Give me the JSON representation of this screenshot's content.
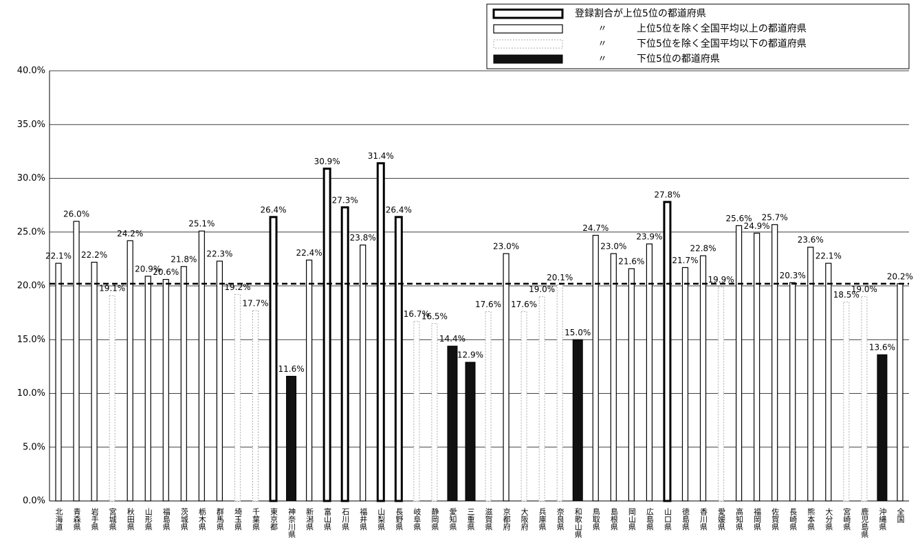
{
  "chart_data": {
    "type": "bar",
    "categories": [
      "北海道",
      "青森県",
      "岩手県",
      "宮城県",
      "秋田県",
      "山形県",
      "福島県",
      "茨城県",
      "栃木県",
      "群馬県",
      "埼玉県",
      "千葉県",
      "東京都",
      "神奈川県",
      "新潟県",
      "富山県",
      "石川県",
      "福井県",
      "山梨県",
      "長野県",
      "岐阜県",
      "静岡県",
      "愛知県",
      "三重県",
      "滋賀県",
      "京都府",
      "大阪府",
      "兵庫県",
      "奈良県",
      "和歌山県",
      "鳥取県",
      "島根県",
      "岡山県",
      "広島県",
      "山口県",
      "徳島県",
      "香川県",
      "愛媛県",
      "高知県",
      "福岡県",
      "佐賀県",
      "長崎県",
      "熊本県",
      "大分県",
      "宮崎県",
      "鹿児島県",
      "沖縄県",
      "全国"
    ],
    "values": [
      22.1,
      26.0,
      22.2,
      19.1,
      24.2,
      20.9,
      20.6,
      21.8,
      25.1,
      22.3,
      19.2,
      17.7,
      26.4,
      11.6,
      22.4,
      30.9,
      27.3,
      23.8,
      31.4,
      26.4,
      16.7,
      16.5,
      14.4,
      12.9,
      17.6,
      23.0,
      17.6,
      19.0,
      20.1,
      15.0,
      24.7,
      23.0,
      21.6,
      23.9,
      27.8,
      21.7,
      22.8,
      19.9,
      25.6,
      24.9,
      25.7,
      20.3,
      23.6,
      22.1,
      18.5,
      19.0,
      13.6,
      20.2
    ],
    "value_labels": [
      "22.1%",
      "26.0%",
      "22.2%",
      "19.1%",
      "24.2%",
      "20.9%",
      "20.6%",
      "21.8%",
      "25.1%",
      "22.3%",
      "19.2%",
      "17.7%",
      "26.4%",
      "11.6%",
      "22.4%",
      "30.9%",
      "27.3%",
      "23.8%",
      "31.4%",
      "26.4%",
      "16.7%",
      "16.5%",
      "14.4%",
      "12.9%",
      "17.6%",
      "23.0%",
      "17.6%",
      "19.0%",
      "20.1%",
      "15.0%",
      "24.7%",
      "23.0%",
      "21.6%",
      "23.9%",
      "27.8%",
      "21.7%",
      "22.8%",
      "19.9%",
      "25.6%",
      "24.9%",
      "25.7%",
      "20.3%",
      "23.6%",
      "22.1%",
      "18.5%",
      "19.0%",
      "13.6%",
      "20.2%"
    ],
    "groups": [
      1,
      1,
      1,
      2,
      1,
      1,
      1,
      1,
      1,
      1,
      2,
      2,
      0,
      3,
      1,
      0,
      0,
      1,
      0,
      0,
      2,
      2,
      3,
      3,
      2,
      1,
      2,
      2,
      2,
      3,
      1,
      1,
      1,
      1,
      0,
      1,
      1,
      2,
      1,
      1,
      1,
      1,
      1,
      1,
      2,
      2,
      3,
      1
    ],
    "legend": [
      {
        "mark": "",
        "text": "登録割合が上位5位の都道府県"
      },
      {
        "mark": "〃",
        "text": "上位5位を除く全国平均以上の都道府県"
      },
      {
        "mark": "〃",
        "text": "下位5位を除く全国平均以下の都道府県"
      },
      {
        "mark": "〃",
        "text": "下位5位の都道府県"
      }
    ],
    "ylim": [
      0,
      40
    ],
    "yticks": [
      {
        "value": 0,
        "label": "0.0%"
      },
      {
        "value": 5,
        "label": "5.0%"
      },
      {
        "value": 10,
        "label": "10.0%"
      },
      {
        "value": 15,
        "label": "15.0%"
      },
      {
        "value": 20,
        "label": "20.0%"
      },
      {
        "value": 25,
        "label": "25.0%"
      },
      {
        "value": 30,
        "label": "30.0%"
      },
      {
        "value": 35,
        "label": "35.0%"
      },
      {
        "value": 40,
        "label": "40.0%"
      }
    ],
    "grid": true
  }
}
